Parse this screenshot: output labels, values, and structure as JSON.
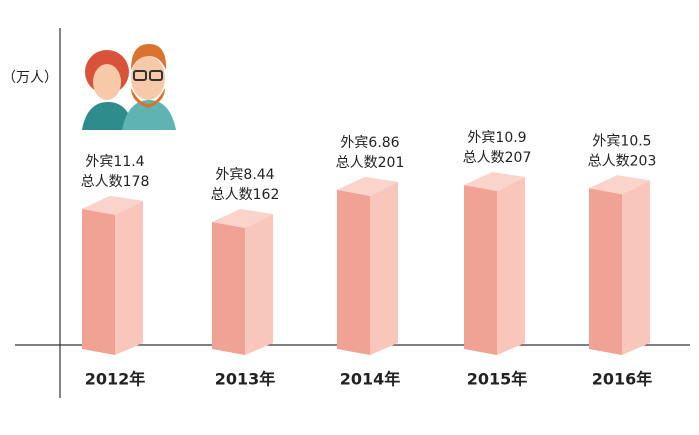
{
  "chart_data": {
    "type": "bar3d",
    "y_label": "（万人）",
    "categories": [
      "2012年",
      "2013年",
      "2014年",
      "2015年",
      "2016年"
    ],
    "series": [
      {
        "values": [
          178,
          162,
          201,
          207,
          203
        ],
        "value_labels": [
          "总人数178",
          "总人数162",
          "总人数201",
          "总人数207",
          "总人数203"
        ],
        "colors": [
          "#f0a294",
          "#f9c6bb",
          "#fad3ca"
        ]
      },
      {
        "values": [
          11.4,
          8.44,
          6.86,
          10.9,
          10.5
        ],
        "value_labels": [
          "外宾11.4",
          "外宾8.44",
          "外宾6.86",
          "外宾10.9",
          "外宾10.5"
        ]
      }
    ]
  }
}
